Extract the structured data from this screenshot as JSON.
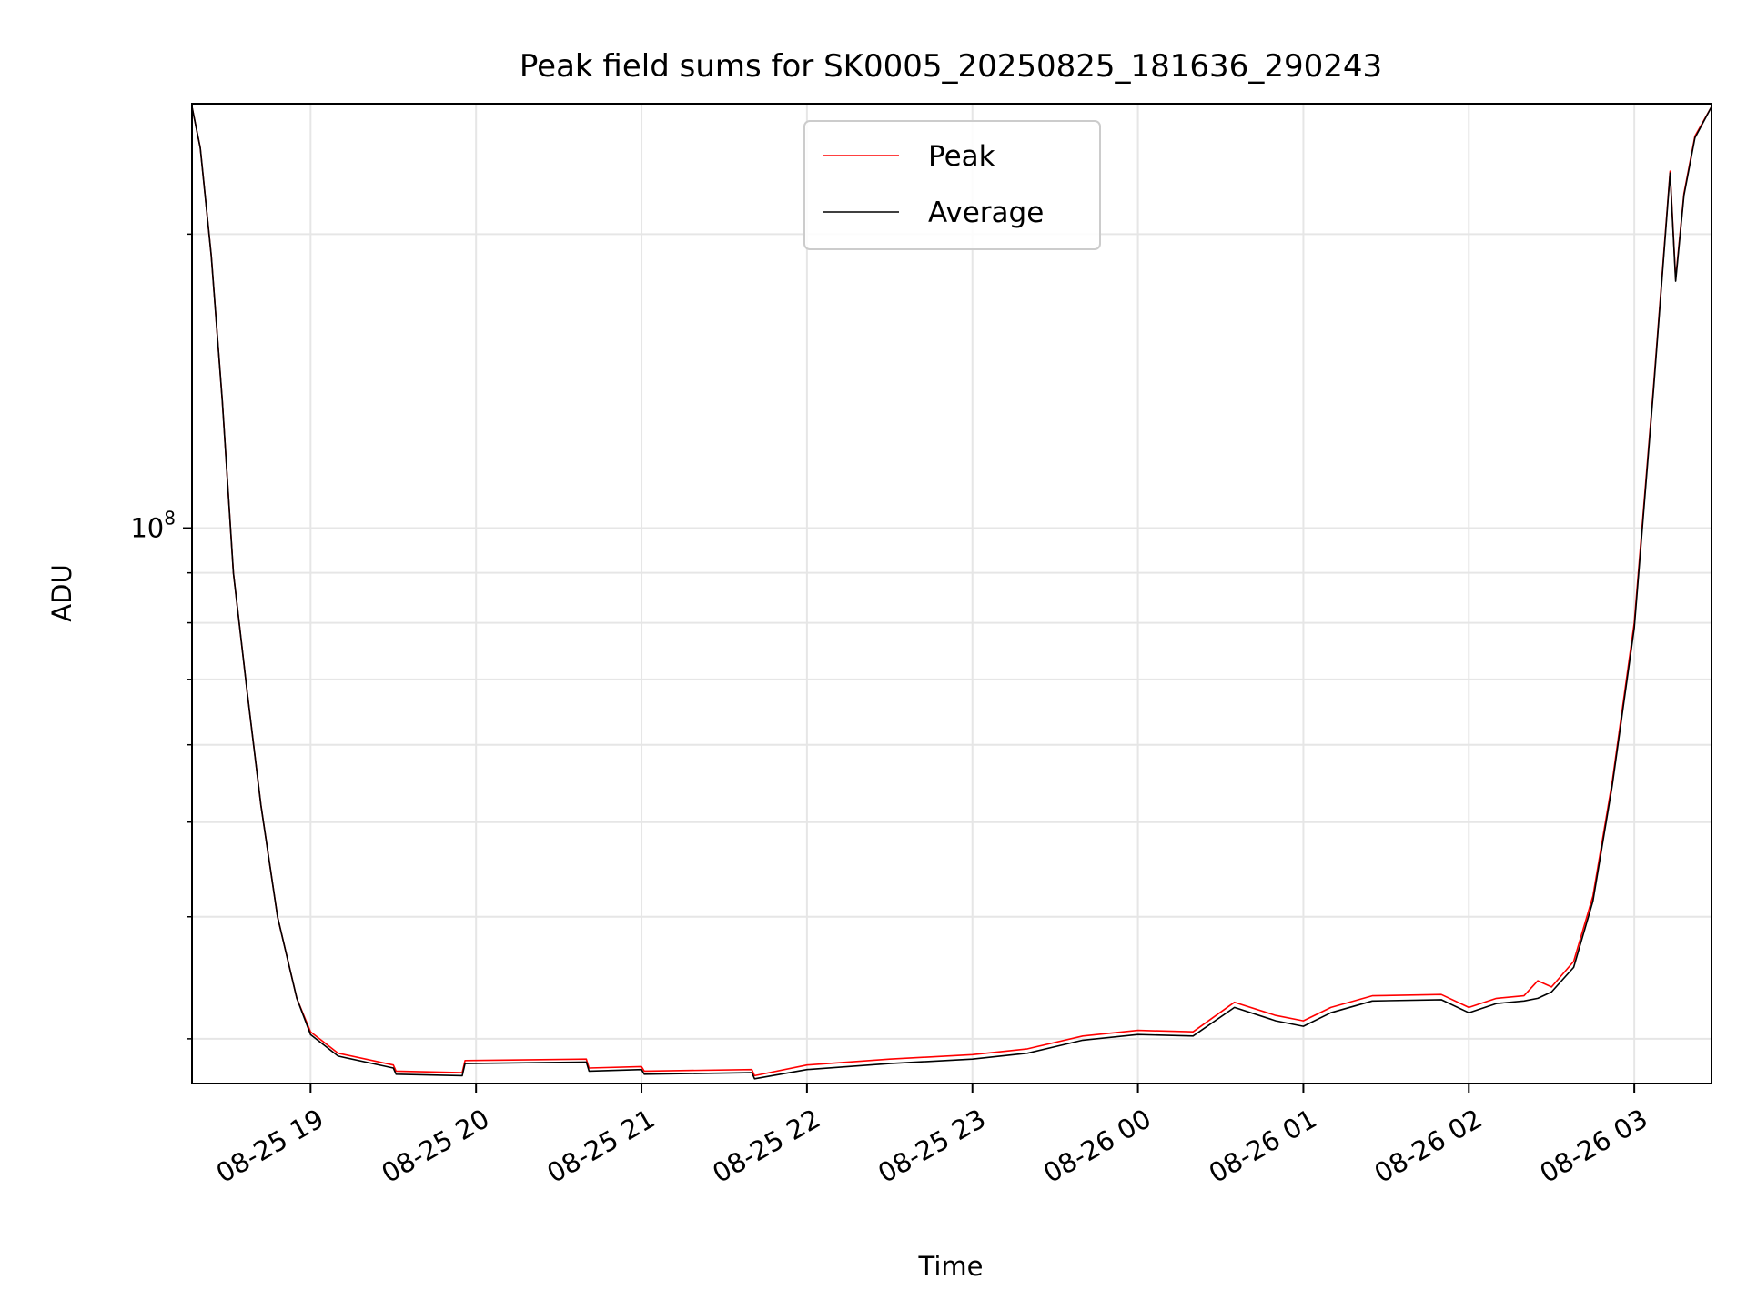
{
  "chart_data": {
    "type": "line",
    "title": "Peak field sums for SK0005_20250825_181636_290243",
    "xlabel": "Time",
    "ylabel": "ADU",
    "yscale": "log",
    "ylim": [
      27000000,
      272000000
    ],
    "xlim": [
      "2025-08-25 18:17",
      "2025-08-26 03:28"
    ],
    "grid": true,
    "legend_position": "upper center",
    "x_ticks": [
      {
        "x": "2025-08-25 19:00",
        "label": "08-25 19"
      },
      {
        "x": "2025-08-25 20:00",
        "label": "08-25 20"
      },
      {
        "x": "2025-08-25 21:00",
        "label": "08-25 21"
      },
      {
        "x": "2025-08-25 22:00",
        "label": "08-25 22"
      },
      {
        "x": "2025-08-25 23:00",
        "label": "08-25 23"
      },
      {
        "x": "2025-08-26 00:00",
        "label": "08-26 00"
      },
      {
        "x": "2025-08-26 01:00",
        "label": "08-26 01"
      },
      {
        "x": "2025-08-26 02:00",
        "label": "08-26 02"
      },
      {
        "x": "2025-08-26 03:00",
        "label": "08-26 03"
      }
    ],
    "y_ticks": [
      {
        "y": 100000000,
        "base": "10",
        "exp": "8"
      }
    ],
    "y_minor_ticks": [
      30000000,
      40000000,
      50000000,
      60000000,
      70000000,
      80000000,
      90000000,
      200000000
    ],
    "series": [
      {
        "name": "Peak",
        "color": "#ff0000",
        "x": [
          "2025-08-25 18:17",
          "2025-08-25 18:20",
          "2025-08-25 18:24",
          "2025-08-25 18:28",
          "2025-08-25 18:32",
          "2025-08-25 18:37",
          "2025-08-25 18:42",
          "2025-08-25 18:48",
          "2025-08-25 18:55",
          "2025-08-25 19:00",
          "2025-08-25 19:10",
          "2025-08-25 19:30",
          "2025-08-25 19:31",
          "2025-08-25 19:55",
          "2025-08-25 19:56",
          "2025-08-25 20:40",
          "2025-08-25 20:41",
          "2025-08-25 21:00",
          "2025-08-25 21:01",
          "2025-08-25 21:40",
          "2025-08-25 21:41",
          "2025-08-25 22:00",
          "2025-08-25 22:30",
          "2025-08-25 23:00",
          "2025-08-25 23:20",
          "2025-08-25 23:40",
          "2025-08-26 00:00",
          "2025-08-26 00:20",
          "2025-08-26 00:35",
          "2025-08-26 00:50",
          "2025-08-26 01:00",
          "2025-08-26 01:10",
          "2025-08-26 01:25",
          "2025-08-26 01:50",
          "2025-08-26 02:00",
          "2025-08-26 02:10",
          "2025-08-26 02:20",
          "2025-08-26 02:25",
          "2025-08-26 02:30",
          "2025-08-26 02:38",
          "2025-08-26 02:45",
          "2025-08-26 02:52",
          "2025-08-26 03:00",
          "2025-08-26 03:07",
          "2025-08-26 03:13",
          "2025-08-26 03:15",
          "2025-08-26 03:18",
          "2025-08-26 03:22",
          "2025-08-26 03:28"
        ],
        "y": [
          270000000,
          245000000,
          190000000,
          135000000,
          90000000,
          68000000,
          52000000,
          40000000,
          33000000,
          30500000,
          29000000,
          28200000,
          27800000,
          27700000,
          28500000,
          28600000,
          28000000,
          28100000,
          27800000,
          27900000,
          27500000,
          28200000,
          28600000,
          28900000,
          29300000,
          30200000,
          30600000,
          30500000,
          32700000,
          31700000,
          31300000,
          32300000,
          33200000,
          33300000,
          32300000,
          33000000,
          33200000,
          34400000,
          33900000,
          36000000,
          42000000,
          55000000,
          80000000,
          140000000,
          232000000,
          180000000,
          220000000,
          252000000,
          270000000
        ]
      },
      {
        "name": "Average",
        "color": "#000000",
        "x": [
          "2025-08-25 18:17",
          "2025-08-25 18:20",
          "2025-08-25 18:24",
          "2025-08-25 18:28",
          "2025-08-25 18:32",
          "2025-08-25 18:37",
          "2025-08-25 18:42",
          "2025-08-25 18:48",
          "2025-08-25 18:55",
          "2025-08-25 19:00",
          "2025-08-25 19:10",
          "2025-08-25 19:30",
          "2025-08-25 19:31",
          "2025-08-25 19:55",
          "2025-08-25 19:56",
          "2025-08-25 20:40",
          "2025-08-25 20:41",
          "2025-08-25 21:00",
          "2025-08-25 21:01",
          "2025-08-25 21:40",
          "2025-08-25 21:41",
          "2025-08-25 22:00",
          "2025-08-25 22:30",
          "2025-08-25 23:00",
          "2025-08-25 23:20",
          "2025-08-25 23:40",
          "2025-08-26 00:00",
          "2025-08-26 00:20",
          "2025-08-26 00:35",
          "2025-08-26 00:50",
          "2025-08-26 01:00",
          "2025-08-26 01:10",
          "2025-08-26 01:25",
          "2025-08-26 01:50",
          "2025-08-26 02:00",
          "2025-08-26 02:10",
          "2025-08-26 02:20",
          "2025-08-26 02:25",
          "2025-08-26 02:30",
          "2025-08-26 02:38",
          "2025-08-26 02:45",
          "2025-08-26 02:52",
          "2025-08-26 03:00",
          "2025-08-26 03:07",
          "2025-08-26 03:13",
          "2025-08-26 03:15",
          "2025-08-26 03:18",
          "2025-08-26 03:22",
          "2025-08-26 03:28"
        ],
        "y": [
          270000000,
          245000000,
          190000000,
          135000000,
          90000000,
          68000000,
          52000000,
          40000000,
          33000000,
          30300000,
          28800000,
          28000000,
          27600000,
          27500000,
          28300000,
          28400000,
          27800000,
          27900000,
          27600000,
          27700000,
          27300000,
          27900000,
          28300000,
          28600000,
          29000000,
          29900000,
          30300000,
          30200000,
          32300000,
          31300000,
          30900000,
          31900000,
          32800000,
          32900000,
          31900000,
          32600000,
          32800000,
          33000000,
          33500000,
          35500000,
          41500000,
          54500000,
          79000000,
          139000000,
          231000000,
          179000000,
          219000000,
          251000000,
          270000000
        ]
      }
    ]
  }
}
